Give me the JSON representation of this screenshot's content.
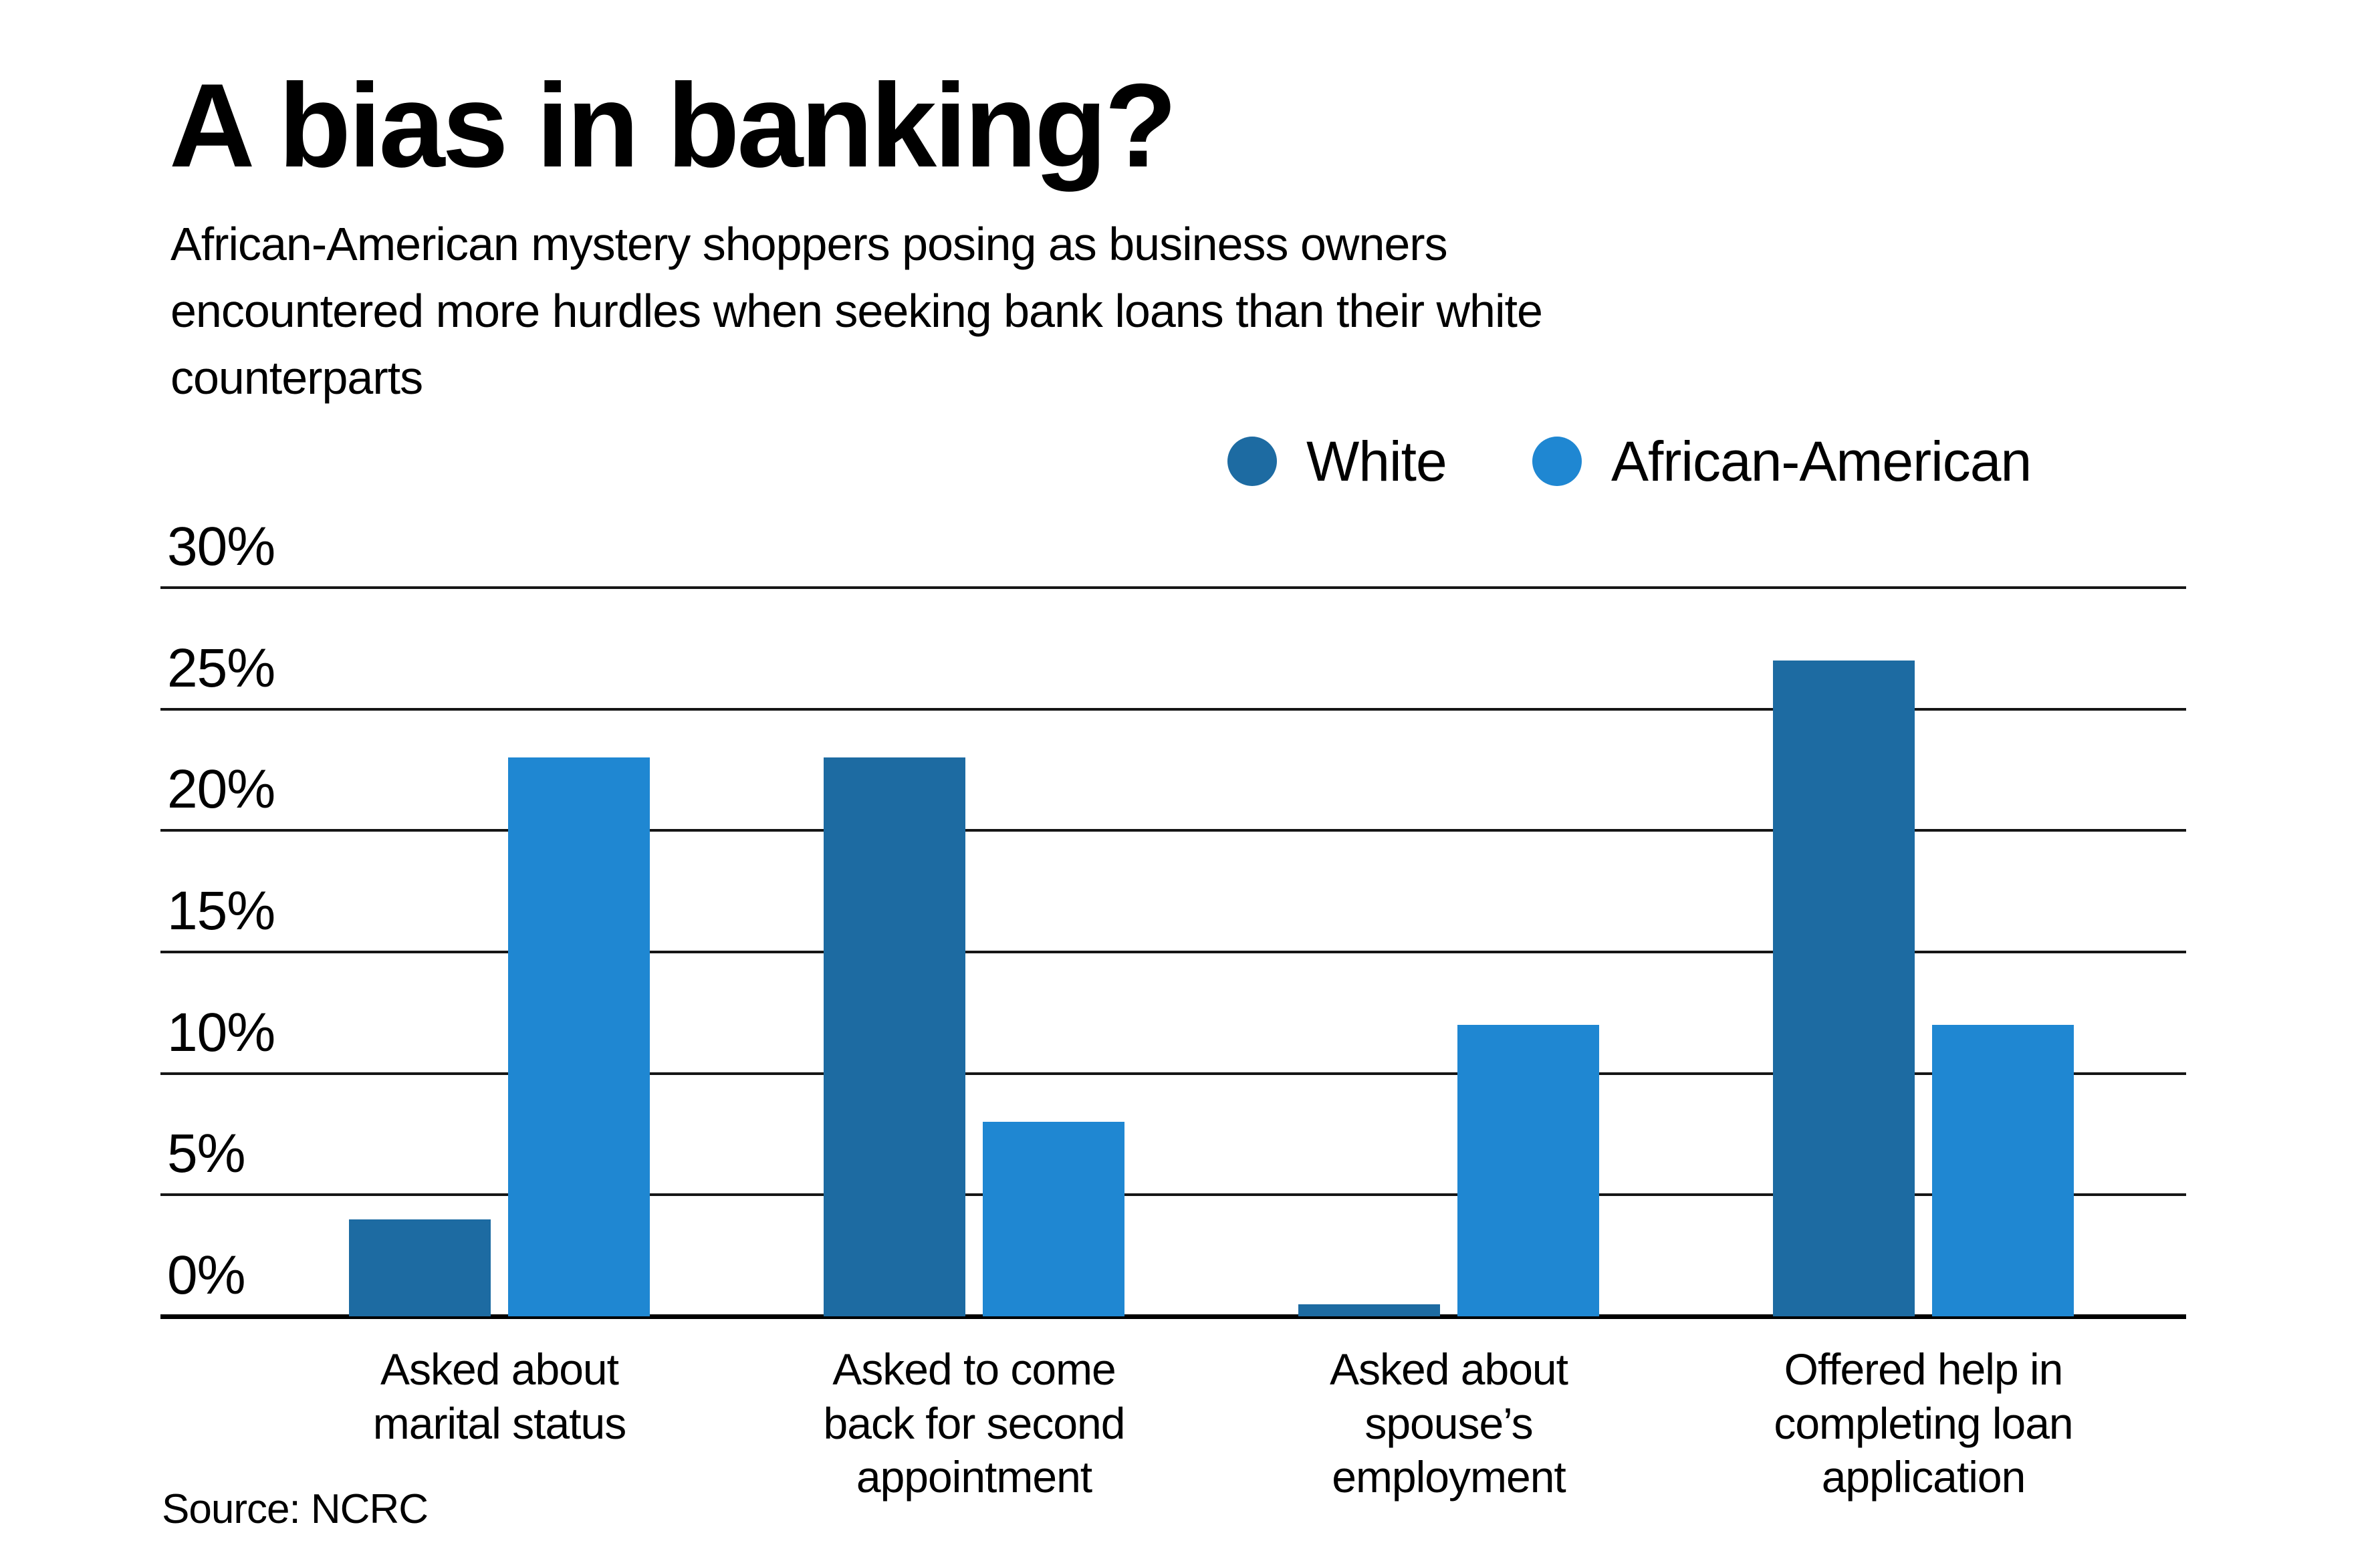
{
  "header": {
    "title": "A bias in banking?",
    "subtitle": "African-American mystery shoppers posing as business owners\nencountered more hurdles when seeking bank loans than their white\ncounterparts"
  },
  "source": "Source: NCRC",
  "colors": {
    "white_series": "#1d6ba2",
    "african_american_series": "#1f87d2",
    "grid_line": "#161616",
    "axis_line": "#000000",
    "text": "#000000",
    "background": "#ffffff"
  },
  "chart_data": {
    "type": "bar",
    "title": "A bias in banking?",
    "categories": [
      "Asked about marital status",
      "Asked to come back for second appointment",
      "Asked about spouse’s employment",
      "Offered help in completing loan application"
    ],
    "categories_wrapped": [
      "Asked about\nmarital status",
      "Asked to come\nback for second\nappointment",
      "Asked about\nspouse’s\nemployment",
      "Offered help in\ncompleting loan\napplication"
    ],
    "series": [
      {
        "name": "White",
        "color": "#1d6ba2",
        "values": [
          4,
          23,
          0.5,
          27
        ]
      },
      {
        "name": "African-American",
        "color": "#1f87d2",
        "values": [
          23,
          8,
          12,
          12
        ]
      }
    ],
    "xlabel": "",
    "ylabel": "",
    "y_ticks": [
      "0%",
      "5%",
      "10%",
      "15%",
      "20%",
      "25%",
      "30%"
    ],
    "y_tick_step": 5,
    "ylim": [
      0,
      30
    ],
    "grid": "horizontal",
    "legend_position": "top-right"
  }
}
